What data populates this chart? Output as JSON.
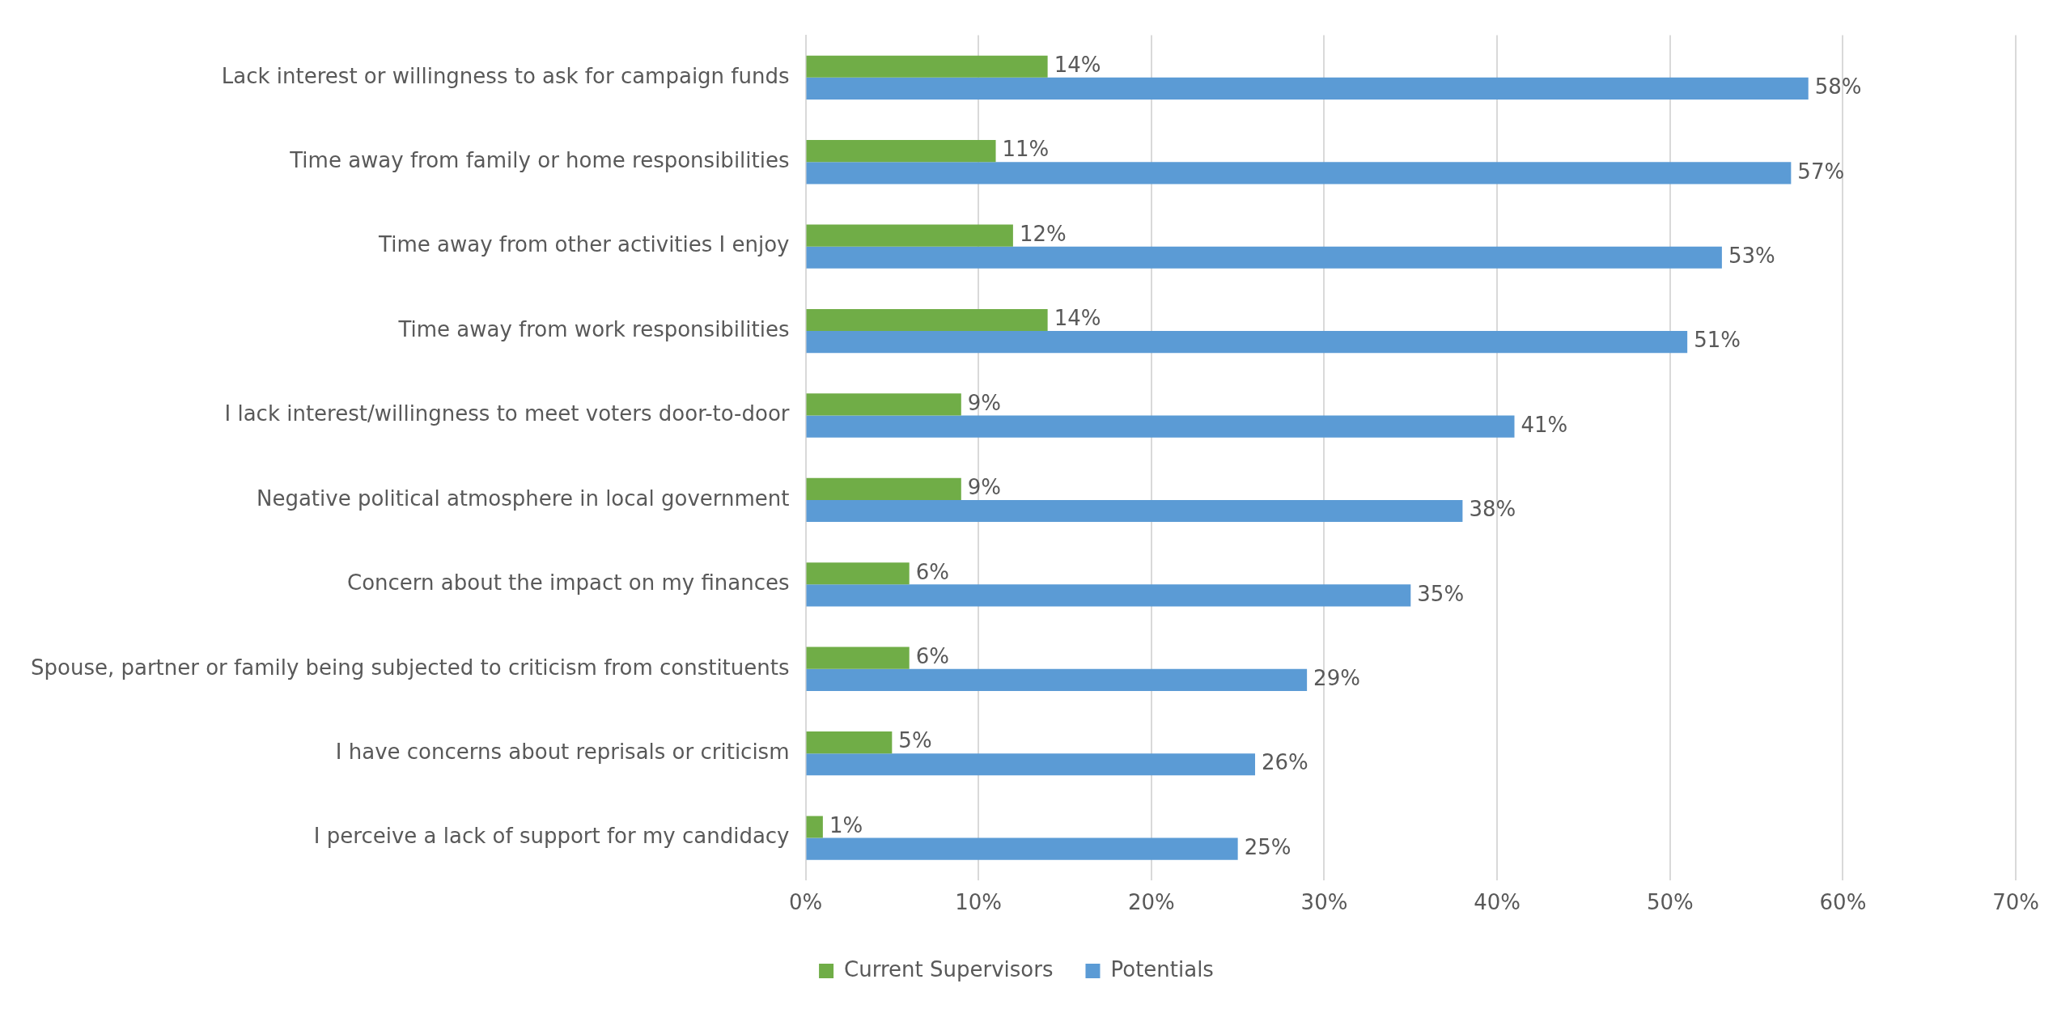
{
  "chart_data": {
    "type": "bar",
    "orientation": "horizontal",
    "categories": [
      "Lack interest or willingness to ask for campaign funds",
      "Time away from family or home responsibilities",
      "Time away from other activities I enjoy",
      "Time away from work responsibilities",
      "I lack interest/willingness to meet voters door-to-door",
      "Negative political atmosphere in local government",
      "Concern about the impact on my finances",
      "Spouse, partner or family being subjected to criticism from constituents",
      "I have concerns about reprisals or criticism",
      "I perceive a lack of support for my candidacy"
    ],
    "series": [
      {
        "name": "Current Supervisors",
        "color": "#70ad47",
        "values": [
          14,
          11,
          12,
          14,
          9,
          9,
          6,
          6,
          5,
          1
        ],
        "value_labels": [
          "14%",
          "11%",
          "12%",
          "14%",
          "9%",
          "9%",
          "6%",
          "6%",
          "5%",
          "1%"
        ]
      },
      {
        "name": "Potentials",
        "color": "#5b9bd5",
        "values": [
          58,
          57,
          53,
          51,
          41,
          38,
          35,
          29,
          26,
          25
        ],
        "value_labels": [
          "58%",
          "57%",
          "53%",
          "51%",
          "41%",
          "38%",
          "35%",
          "29%",
          "26%",
          "25%"
        ]
      }
    ],
    "xlim": [
      0,
      70
    ],
    "xticks": [
      {
        "value": 0,
        "label": "0%"
      },
      {
        "value": 10,
        "label": "10%"
      },
      {
        "value": 20,
        "label": "20%"
      },
      {
        "value": 30,
        "label": "30%"
      },
      {
        "value": 40,
        "label": "40%"
      },
      {
        "value": 50,
        "label": "50%"
      },
      {
        "value": 60,
        "label": "60%"
      },
      {
        "value": 70,
        "label": "70%"
      }
    ],
    "grid": "x",
    "legend": "bottom"
  }
}
